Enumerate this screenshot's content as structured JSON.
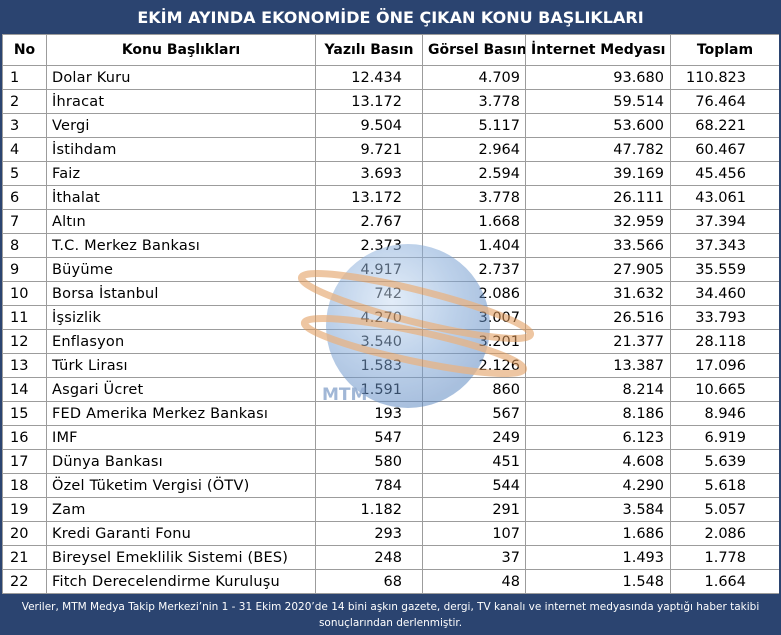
{
  "title": "EKİM AYINDA EKONOMİDE ÖNE ÇIKAN KONU BAŞLIKLARI",
  "headers": [
    "No",
    "Konu Başlıkları",
    "Yazılı Basın",
    "Görsel Basın",
    "İnternet Medyası",
    "Toplam"
  ],
  "rows": [
    [
      "1",
      "Dolar Kuru",
      "12.434",
      "4.709",
      "93.680",
      "110.823"
    ],
    [
      "2",
      "İhracat",
      "13.172",
      "3.778",
      "59.514",
      "76.464"
    ],
    [
      "3",
      "Vergi",
      "9.504",
      "5.117",
      "53.600",
      "68.221"
    ],
    [
      "4",
      "İstihdam",
      "9.721",
      "2.964",
      "47.782",
      "60.467"
    ],
    [
      "5",
      "Faiz",
      "3.693",
      "2.594",
      "39.169",
      "45.456"
    ],
    [
      "6",
      "İthalat",
      "13.172",
      "3.778",
      "26.111",
      "43.061"
    ],
    [
      "7",
      "Altın",
      "2.767",
      "1.668",
      "32.959",
      "37.394"
    ],
    [
      "8",
      "T.C. Merkez Bankası",
      "2.373",
      "1.404",
      "33.566",
      "37.343"
    ],
    [
      "9",
      "Büyüme",
      "4.917",
      "2.737",
      "27.905",
      "35.559"
    ],
    [
      "10",
      "Borsa İstanbul",
      "742",
      "2.086",
      "31.632",
      "34.460"
    ],
    [
      "11",
      "İşsizlik",
      "4.270",
      "3.007",
      "26.516",
      "33.793"
    ],
    [
      "12",
      "Enflasyon",
      "3.540",
      "3.201",
      "21.377",
      "28.118"
    ],
    [
      "13",
      "Türk Lirası",
      "1.583",
      "2.126",
      "13.387",
      "17.096"
    ],
    [
      "14",
      "Asgari Ücret",
      "1.591",
      "860",
      "8.214",
      "10.665"
    ],
    [
      "15",
      "FED Amerika Merkez Bankası",
      "193",
      "567",
      "8.186",
      "8.946"
    ],
    [
      "16",
      "IMF",
      "547",
      "249",
      "6.123",
      "6.919"
    ],
    [
      "17",
      "Dünya Bankası",
      "580",
      "451",
      "4.608",
      "5.639"
    ],
    [
      "18",
      "Özel Tüketim Vergisi (ÖTV)",
      "784",
      "544",
      "4.290",
      "5.618"
    ],
    [
      "19",
      "Zam",
      "1.182",
      "291",
      "3.584",
      "5.057"
    ],
    [
      "20",
      "Kredi Garanti Fonu",
      "293",
      "107",
      "1.686",
      "2.086"
    ],
    [
      "21",
      "Bireysel Emeklilik Sistemi (BES)",
      "248",
      "37",
      "1.493",
      "1.778"
    ],
    [
      "22",
      "Fitch Derecelendirme Kuruluşu",
      "68",
      "48",
      "1.548",
      "1.664"
    ]
  ],
  "footer": "Veriler, MTM Medya Takip Merkezi’nin 1 - 31 Ekim 2020’de 14 bini aşkın gazete, dergi, TV kanalı ve internet medyasında yaptığı haber takibi sonuçlarından derlenmiştir.",
  "watermark_text": "MTM",
  "colors": {
    "header_bg": "#2b4470",
    "header_text": "#ffffff",
    "grid": "#9c9c9c"
  }
}
